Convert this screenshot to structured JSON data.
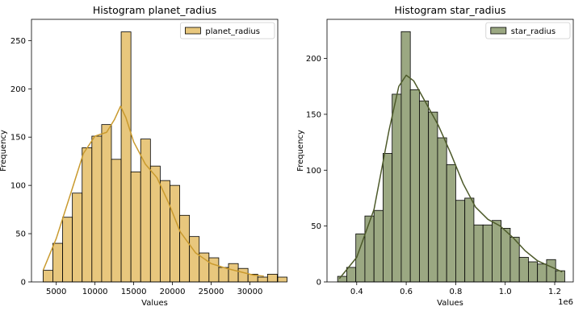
{
  "chart_data": [
    {
      "type": "bar",
      "title": "Histogram planet_radius",
      "xlabel": "Values",
      "ylabel": "Frequency",
      "x_offset_label": "",
      "xlim": [
        1800,
        33600
      ],
      "ylim": [
        0,
        272
      ],
      "xticks": [
        5000,
        10000,
        15000,
        20000,
        25000,
        30000
      ],
      "xtick_labels": [
        "5000",
        "10000",
        "15000",
        "20000",
        "25000",
        "30000"
      ],
      "yticks": [
        0,
        50,
        100,
        150,
        200,
        250
      ],
      "ytick_labels": [
        "0",
        "50",
        "100",
        "150",
        "200",
        "250"
      ],
      "bin_start": 3300,
      "bin_width": 1260,
      "values": [
        12,
        40,
        67,
        92,
        139,
        151,
        163,
        127,
        259,
        114,
        148,
        120,
        105,
        100,
        69,
        47,
        30,
        25,
        15,
        19,
        14,
        8,
        5,
        8,
        5
      ],
      "kde_x": [
        3300,
        5000,
        7000,
        8500,
        10000,
        11500,
        12500,
        13300,
        14000,
        15000,
        16500,
        18000,
        19500,
        21000,
        23000,
        25000,
        27000,
        29000,
        30500,
        31800
      ],
      "kde_y": [
        12,
        45,
        95,
        133,
        151,
        155,
        168,
        182,
        170,
        145,
        122,
        108,
        82,
        52,
        30,
        19,
        14,
        10,
        7,
        6
      ],
      "series": [
        {
          "name": "planet_radius"
        }
      ],
      "legend": "top-right",
      "bar_color": "#e8c77d",
      "line_color": "#c99a2e",
      "grid": false
    },
    {
      "type": "bar",
      "title": "Histogram star_radius",
      "xlabel": "Values",
      "ylabel": "Frequency",
      "x_offset_label": "1e6",
      "xlim": [
        0.28,
        1.275
      ],
      "ylim": [
        0,
        235
      ],
      "xticks": [
        0.4,
        0.6,
        0.8,
        1.0,
        1.2
      ],
      "xtick_labels": [
        "0.4",
        "0.6",
        "0.8",
        "1.0",
        "1.2"
      ],
      "yticks": [
        0,
        50,
        100,
        150,
        200
      ],
      "ytick_labels": [
        "0",
        "50",
        "100",
        "150",
        "200"
      ],
      "bin_start": 0.323,
      "bin_width": 0.0367,
      "values": [
        5,
        13,
        43,
        59,
        64,
        115,
        168,
        224,
        172,
        162,
        152,
        129,
        105,
        73,
        75,
        51,
        51,
        55,
        48,
        40,
        22,
        18,
        16,
        20,
        10
      ],
      "kde_x": [
        0.33,
        0.4,
        0.47,
        0.53,
        0.57,
        0.6,
        0.63,
        0.68,
        0.73,
        0.78,
        0.83,
        0.88,
        0.93,
        0.98,
        1.03,
        1.08,
        1.13,
        1.18,
        1.23
      ],
      "kde_y": [
        3,
        22,
        65,
        135,
        175,
        185,
        180,
        160,
        140,
        115,
        88,
        67,
        56,
        50,
        40,
        28,
        19,
        14,
        9
      ],
      "series": [
        {
          "name": "star_radius"
        }
      ],
      "legend": "top-right",
      "bar_color": "#9ba882",
      "line_color": "#4d5a2a",
      "grid": false
    }
  ]
}
